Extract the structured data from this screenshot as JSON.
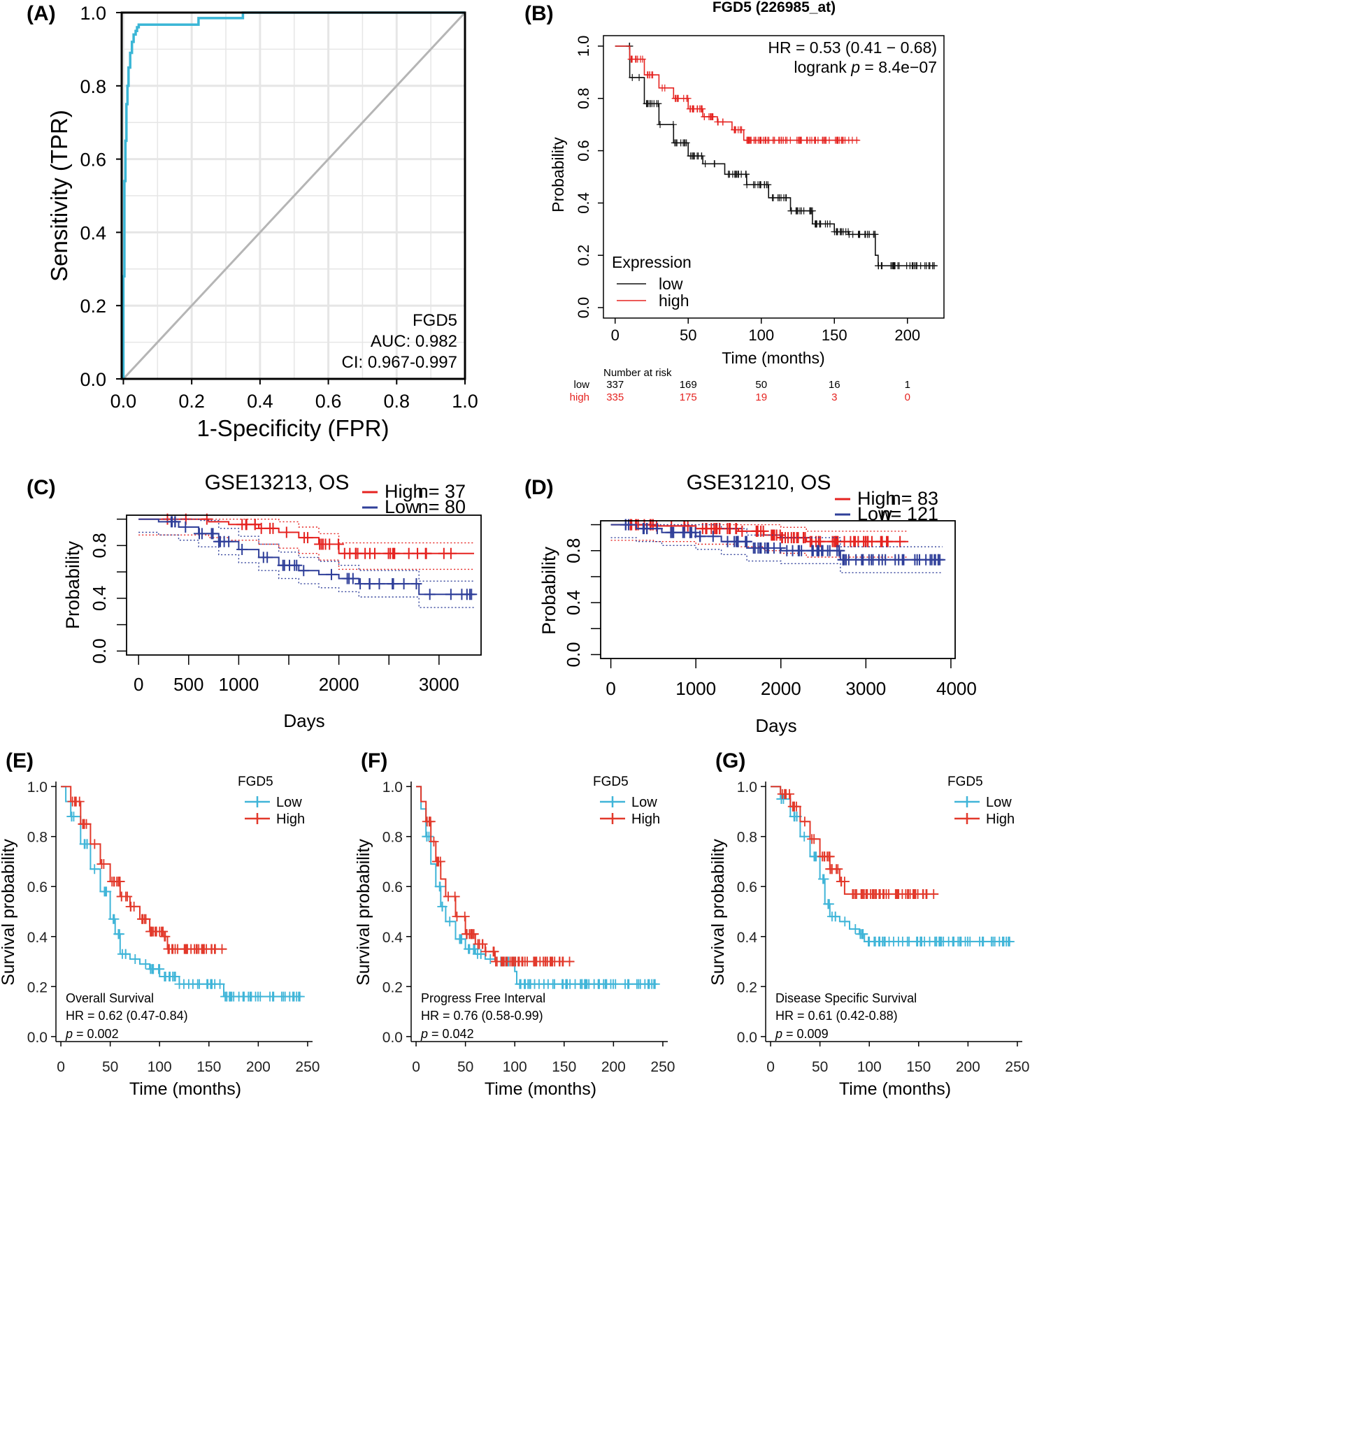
{
  "colors": {
    "roc": "#3bb6d6",
    "grid": "#e6e6e6",
    "diag": "#b5b5b5",
    "km_low": "#111111",
    "km_high": "#e52320",
    "geo_high": "#e52320",
    "geo_low": "#2f3f99",
    "tcga_low": "#40b5d8",
    "tcga_high": "#e2392b"
  },
  "chart_data": [
    {
      "id": "A",
      "type": "line",
      "panel_label": "(A)",
      "title": "",
      "xlabel": "1-Specificity (FPR)",
      "ylabel": "Sensitivity (TPR)",
      "xlim": [
        0,
        1
      ],
      "ylim": [
        0,
        1
      ],
      "grid": true,
      "x_ticks": [
        "0.0",
        "0.2",
        "0.4",
        "0.6",
        "0.8",
        "1.0"
      ],
      "y_ticks": [
        "0.0",
        "0.2",
        "0.4",
        "0.6",
        "0.8",
        "1.0"
      ],
      "legend": [
        "FGD5",
        "AUC: 0.982",
        "CI: 0.967-0.997"
      ],
      "series": [
        {
          "name": "ROC",
          "x": [
            0,
            0,
            0.003,
            0.003,
            0.006,
            0.006,
            0.009,
            0.009,
            0.012,
            0.012,
            0.015,
            0.015,
            0.02,
            0.02,
            0.025,
            0.025,
            0.03,
            0.03,
            0.036,
            0.036,
            0.04,
            0.04,
            0.045,
            0.045,
            0.22,
            0.22,
            0.35,
            0.35,
            1.0
          ],
          "y": [
            0,
            0.28,
            0.28,
            0.54,
            0.54,
            0.65,
            0.65,
            0.75,
            0.75,
            0.8,
            0.8,
            0.85,
            0.85,
            0.89,
            0.89,
            0.92,
            0.92,
            0.94,
            0.94,
            0.95,
            0.95,
            0.96,
            0.96,
            0.967,
            0.967,
            0.985,
            0.985,
            1.0,
            1.0
          ]
        },
        {
          "name": "reference",
          "x": [
            0,
            1
          ],
          "y": [
            0,
            1
          ]
        }
      ]
    },
    {
      "id": "B",
      "type": "line",
      "panel_label": "(B)",
      "title": "FGD5 (226985_at)",
      "xlabel": "Time (months)",
      "ylabel": "Probability",
      "xlim": [
        0,
        225
      ],
      "ylim": [
        0,
        1
      ],
      "x_ticks": [
        "0",
        "50",
        "100",
        "150",
        "200"
      ],
      "y_ticks": [
        "0.0",
        "0.2",
        "0.4",
        "0.6",
        "0.8",
        "1.0"
      ],
      "annotation": {
        "hr": "HR = 0.53 (0.41 − 0.68)",
        "logrank_pre": "logrank ",
        "p_sym": "p",
        "logrank_post": " = 8.4e−07"
      },
      "legend_title": "Expression",
      "series": [
        {
          "name": "low",
          "x": [
            0,
            10,
            20,
            30,
            40,
            50,
            60,
            75,
            90,
            105,
            120,
            135,
            150,
            160,
            175,
            178,
            180,
            220
          ],
          "y": [
            1.0,
            0.88,
            0.78,
            0.7,
            0.63,
            0.58,
            0.55,
            0.51,
            0.47,
            0.42,
            0.37,
            0.32,
            0.29,
            0.28,
            0.28,
            0.2,
            0.16,
            0.16
          ]
        },
        {
          "name": "high",
          "x": [
            0,
            10,
            20,
            30,
            40,
            50,
            60,
            70,
            80,
            85,
            88,
            167
          ],
          "y": [
            1.0,
            0.95,
            0.89,
            0.84,
            0.8,
            0.76,
            0.73,
            0.71,
            0.68,
            0.68,
            0.64,
            0.64
          ]
        }
      ],
      "risk_table": {
        "title": "Number at risk",
        "times": [
          0,
          50,
          100,
          150,
          200
        ],
        "rows": [
          {
            "label": "low",
            "values": [
              "337",
              "169",
              "50",
              "16",
              "1"
            ]
          },
          {
            "label": "high",
            "values": [
              "335",
              "175",
              "19",
              "3",
              "0"
            ]
          }
        ]
      }
    },
    {
      "id": "C",
      "type": "line",
      "panel_label": "(C)",
      "title": "GSE13213, OS",
      "xlabel": "Days",
      "ylabel": "Probability",
      "xlim": [
        -120,
        3420
      ],
      "ylim": [
        -0.03,
        1.03
      ],
      "x_ticks": [
        "0",
        "500",
        "1000",
        "2000",
        "3000"
      ],
      "x_tick_values": [
        0,
        500,
        1000,
        2000,
        3000
      ],
      "y_ticks": [
        "0.0",
        "0.4",
        "0.8"
      ],
      "y_tick_values": [
        0,
        0.4,
        0.8
      ],
      "legend": [
        {
          "label": "High",
          "n": "n= 37"
        },
        {
          "label": "Low",
          "n": "n= 80"
        }
      ],
      "series": [
        {
          "name": "High",
          "x": [
            0,
            700,
            900,
            1200,
            1400,
            1600,
            1800,
            2000,
            3350
          ],
          "y": [
            1.0,
            0.98,
            0.96,
            0.93,
            0.9,
            0.86,
            0.81,
            0.74,
            0.74
          ]
        },
        {
          "name": "Low",
          "x": [
            0,
            200,
            400,
            600,
            800,
            1000,
            1200,
            1400,
            1600,
            1800,
            2000,
            2200,
            2800,
            3350
          ],
          "y": [
            1.0,
            0.98,
            0.94,
            0.89,
            0.83,
            0.77,
            0.71,
            0.65,
            0.61,
            0.58,
            0.55,
            0.51,
            0.43,
            0.43
          ]
        }
      ]
    },
    {
      "id": "D",
      "type": "line",
      "panel_label": "(D)",
      "title": "GSE31210, OS",
      "xlabel": "Days",
      "ylabel": "Probability",
      "xlim": [
        -120,
        4050
      ],
      "ylim": [
        -0.03,
        1.03
      ],
      "x_ticks": [
        "0",
        "1000",
        "2000",
        "3000",
        "4000"
      ],
      "x_tick_values": [
        0,
        1000,
        2000,
        3000,
        4000
      ],
      "y_ticks": [
        "0.0",
        "0.4",
        "0.8"
      ],
      "y_tick_values": [
        0,
        0.4,
        0.8
      ],
      "legend": [
        {
          "label": "High",
          "n": "n= 83"
        },
        {
          "label": "Low",
          "n": "n= 121"
        }
      ],
      "series": [
        {
          "name": "High",
          "x": [
            0,
            500,
            1000,
            1500,
            1800,
            2000,
            2300,
            3500
          ],
          "y": [
            1.0,
            0.99,
            0.97,
            0.95,
            0.92,
            0.9,
            0.87,
            0.87
          ]
        },
        {
          "name": "Low",
          "x": [
            0,
            300,
            600,
            1000,
            1300,
            1600,
            2000,
            2650,
            2700,
            3900
          ],
          "y": [
            1.0,
            0.97,
            0.94,
            0.91,
            0.87,
            0.82,
            0.8,
            0.8,
            0.73,
            0.73
          ]
        }
      ]
    },
    {
      "id": "E",
      "type": "line",
      "panel_label": "(E)",
      "xlabel": "Time (months)",
      "ylabel": "Survival probability",
      "xlim": [
        -5,
        255
      ],
      "ylim": [
        -0.02,
        1.02
      ],
      "x_ticks": [
        "0",
        "50",
        "100",
        "150",
        "200",
        "250"
      ],
      "y_ticks": [
        "0.0",
        "0.2",
        "0.4",
        "0.6",
        "0.8",
        "1.0"
      ],
      "legend_title": "FGD5",
      "annotation": {
        "label": "Overall Survival",
        "hr": "HR = 0.62 (0.47-0.84)",
        "p_sym": "p",
        "p_val": " = 0.002"
      },
      "series": [
        {
          "name": "Low",
          "x": [
            0,
            5,
            10,
            20,
            30,
            40,
            50,
            55,
            60,
            70,
            80,
            90,
            100,
            120,
            165,
            244
          ],
          "y": [
            1.0,
            0.94,
            0.88,
            0.77,
            0.67,
            0.58,
            0.47,
            0.41,
            0.33,
            0.31,
            0.29,
            0.27,
            0.24,
            0.21,
            0.16,
            0.16
          ]
        },
        {
          "name": "High",
          "x": [
            0,
            10,
            20,
            30,
            40,
            50,
            60,
            70,
            80,
            90,
            105,
            108,
            168
          ],
          "y": [
            1.0,
            0.94,
            0.85,
            0.77,
            0.69,
            0.62,
            0.56,
            0.52,
            0.47,
            0.42,
            0.4,
            0.35,
            0.35
          ]
        }
      ]
    },
    {
      "id": "F",
      "type": "line",
      "panel_label": "(F)",
      "xlabel": "Time (months)",
      "ylabel": "Survival probability",
      "xlim": [
        -5,
        255
      ],
      "ylim": [
        -0.02,
        1.02
      ],
      "x_ticks": [
        "0",
        "50",
        "100",
        "150",
        "200",
        "250"
      ],
      "y_ticks": [
        "0.0",
        "0.2",
        "0.4",
        "0.6",
        "0.8",
        "1.0"
      ],
      "legend_title": "FGD5",
      "annotation": {
        "label": "Progress Free Interval",
        "hr": "HR = 0.76 (0.58-0.99)",
        "p_sym": "p",
        "p_val": " = 0.042"
      },
      "series": [
        {
          "name": "Low",
          "x": [
            0,
            5,
            10,
            15,
            20,
            25,
            30,
            40,
            50,
            60,
            70,
            80,
            95,
            100,
            102,
            244
          ],
          "y": [
            1.0,
            0.91,
            0.8,
            0.69,
            0.6,
            0.52,
            0.46,
            0.39,
            0.35,
            0.33,
            0.31,
            0.3,
            0.3,
            0.26,
            0.21,
            0.21
          ]
        },
        {
          "name": "High",
          "x": [
            0,
            5,
            10,
            15,
            20,
            25,
            30,
            40,
            50,
            60,
            70,
            80,
            160
          ],
          "y": [
            1.0,
            0.94,
            0.86,
            0.78,
            0.7,
            0.63,
            0.56,
            0.48,
            0.41,
            0.37,
            0.34,
            0.3,
            0.3
          ]
        }
      ]
    },
    {
      "id": "G",
      "type": "line",
      "panel_label": "(G)",
      "xlabel": "Time (months)",
      "ylabel": "Survival probability",
      "xlim": [
        -5,
        255
      ],
      "ylim": [
        -0.02,
        1.02
      ],
      "x_ticks": [
        "0",
        "50",
        "100",
        "150",
        "200",
        "250"
      ],
      "y_ticks": [
        "0.0",
        "0.2",
        "0.4",
        "0.6",
        "0.8",
        "1.0"
      ],
      "legend_title": "FGD5",
      "annotation": {
        "label": "Disease Specific Survival",
        "hr": "HR = 0.61 (0.42-0.88)",
        "p_sym": "p",
        "p_val": " = 0.009"
      },
      "series": [
        {
          "name": "Low",
          "x": [
            0,
            10,
            20,
            30,
            40,
            50,
            55,
            60,
            70,
            80,
            90,
            95,
            244
          ],
          "y": [
            1.0,
            0.95,
            0.88,
            0.8,
            0.72,
            0.63,
            0.53,
            0.48,
            0.46,
            0.43,
            0.41,
            0.38,
            0.38
          ]
        },
        {
          "name": "High",
          "x": [
            0,
            10,
            20,
            30,
            40,
            50,
            60,
            70,
            75,
            170
          ],
          "y": [
            1.0,
            0.97,
            0.92,
            0.86,
            0.79,
            0.72,
            0.67,
            0.62,
            0.57,
            0.57
          ]
        }
      ]
    }
  ]
}
